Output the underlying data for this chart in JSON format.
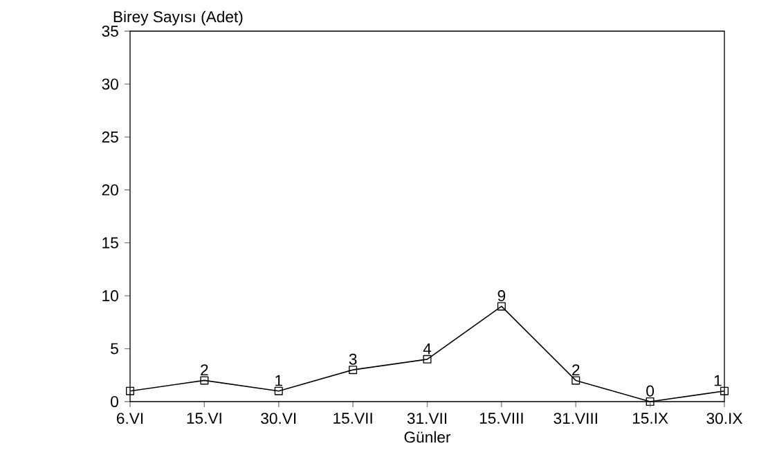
{
  "chart_data": {
    "type": "line",
    "xlabel": "Günler",
    "ylabel": "Birey Sayısı (Adet)",
    "categories": [
      "6.VI",
      "15.VI",
      "30.VI",
      "15.VII",
      "31.VII",
      "15.VIII",
      "31.VIII",
      "15.IX",
      "30.IX"
    ],
    "series": [
      {
        "color": "#000000",
        "values": [
          1,
          2,
          1,
          3,
          4,
          9,
          2,
          0,
          1
        ],
        "value_labels": [
          null,
          "2",
          "1",
          "3",
          "4",
          "9",
          "2",
          "0",
          "1"
        ]
      }
    ],
    "ylim": [
      0,
      35
    ],
    "yticks": [
      0,
      5,
      10,
      15,
      20,
      25,
      30,
      35
    ],
    "marker": "square",
    "line_style": "solid"
  }
}
